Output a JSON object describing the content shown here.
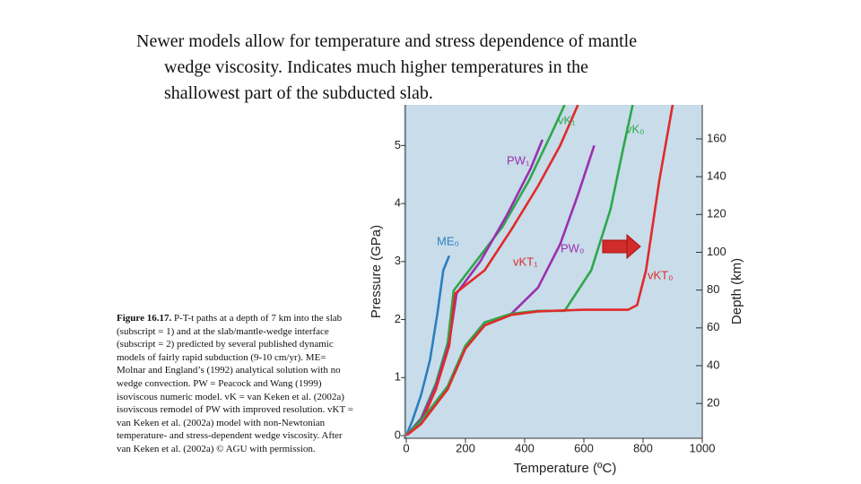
{
  "slide_text": [
    "Newer models allow for temperature and stress dependence of mantle",
    "wedge viscosity. Indicates much higher temperatures in the",
    "shallowest part of the subducted slab."
  ],
  "caption": {
    "label": "Figure 16.17.",
    "text": "P-T-t paths at a depth of 7 km into the slab (subscript = 1) and at the slab/mantle-wedge interface (subscript = 2) predicted by several published dynamic models of fairly rapid subduction (9-10 cm/yr). ME= Molnar and England’s (1992) analytical solution with no wedge convection. PW = Peacock and Wang (1999) isoviscous numeric model. vK = van Keken et al. (2002a) isoviscous remodel of PW with improved resolution. vKT = van Keken et al. (2002a) model with non-Newtonian temperature- and stress-dependent wedge viscosity. After van Keken et al. (2002a) © AGU with permission."
  },
  "chart_data": {
    "type": "line",
    "x_label": "Temperature (ºC)",
    "y_label": "Pressure (GPa)",
    "y2_label": "Depth (km)",
    "xlim": [
      0,
      1000
    ],
    "xticks": [
      0,
      200,
      400,
      600,
      800,
      1000
    ],
    "ylim": [
      0,
      5.7
    ],
    "yticks": [
      0,
      1,
      2,
      3,
      4,
      5
    ],
    "y2lim": [
      3,
      178
    ],
    "y2ticks": [
      20,
      40,
      60,
      80,
      100,
      120,
      140,
      160
    ],
    "background": "#c8dcea",
    "series": [
      {
        "name": "ME₀",
        "color": "#2a7fc0",
        "x": [
          0,
          20,
          50,
          80,
          105,
          125,
          145
        ],
        "values": [
          0,
          0.25,
          0.7,
          1.3,
          2.1,
          2.85,
          3.1
        ]
      },
      {
        "name": "vK₁",
        "color": "#2ea84a",
        "x": [
          0,
          50,
          100,
          140,
          160,
          235,
          325,
          415,
          490,
          535
        ],
        "values": [
          0,
          0.3,
          0.9,
          1.6,
          2.5,
          3.0,
          3.6,
          4.4,
          5.2,
          5.7
        ]
      },
      {
        "name": "PW₁",
        "color": "#9b2fae",
        "x": [
          0,
          50,
          100,
          145,
          170,
          250,
          340,
          420,
          460
        ],
        "values": [
          0,
          0.28,
          0.85,
          1.6,
          2.45,
          3.0,
          3.8,
          4.6,
          5.1
        ]
      },
      {
        "name": "vKT₁",
        "color": "#e02a2a",
        "x": [
          0,
          50,
          100,
          145,
          165,
          265,
          355,
          445,
          520,
          580
        ],
        "values": [
          0,
          0.22,
          0.8,
          1.55,
          2.45,
          2.85,
          3.55,
          4.3,
          5.0,
          5.7
        ]
      },
      {
        "name": "PW₀",
        "color": "#9b2fae",
        "x": [
          0,
          50,
          140,
          200,
          265,
          355,
          445,
          520,
          580,
          635
        ],
        "values": [
          0,
          0.25,
          0.85,
          1.55,
          1.95,
          2.1,
          2.55,
          3.3,
          4.15,
          5.0
        ]
      },
      {
        "name": "vK₀",
        "color": "#2ea84a",
        "x": [
          0,
          50,
          140,
          200,
          265,
          355,
          445,
          535,
          625,
          690,
          735,
          765
        ],
        "values": [
          0,
          0.25,
          0.85,
          1.55,
          1.95,
          2.1,
          2.15,
          2.15,
          2.85,
          3.9,
          5.0,
          5.7
        ]
      },
      {
        "name": "vKT₀",
        "color": "#e02a2a",
        "x": [
          0,
          50,
          140,
          200,
          265,
          355,
          445,
          600,
          750,
          780,
          810,
          855,
          900
        ],
        "values": [
          0,
          0.2,
          0.8,
          1.5,
          1.9,
          2.08,
          2.14,
          2.17,
          2.17,
          2.25,
          2.85,
          4.4,
          5.7
        ]
      }
    ]
  }
}
